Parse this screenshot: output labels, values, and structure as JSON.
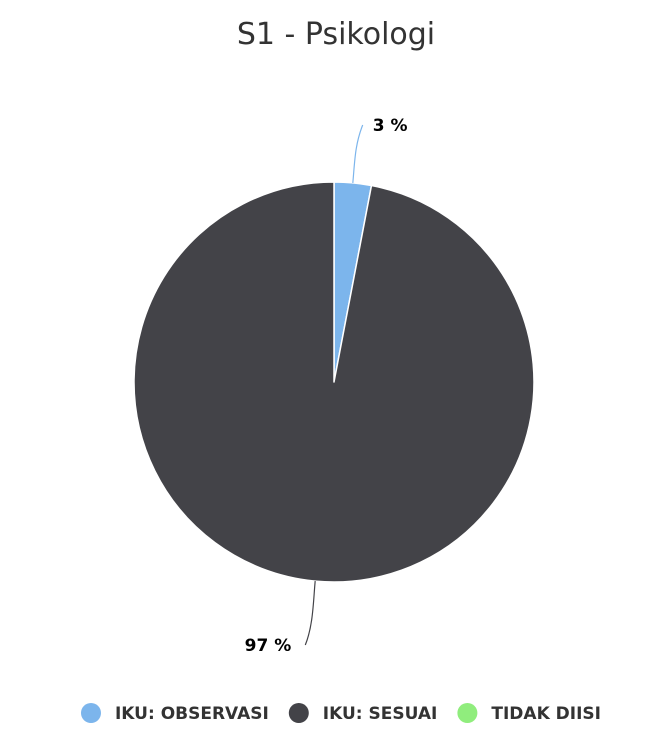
{
  "chart_data": {
    "type": "pie",
    "title": "S1 - Psikologi",
    "slices": [
      {
        "name": "IKU: OBSERVASI",
        "value": 3,
        "label": "3 %",
        "color": "#7cb5ec"
      },
      {
        "name": "IKU: SESUAI",
        "value": 97,
        "label": "97 %",
        "color": "#434348"
      },
      {
        "name": "TIDAK DIISI",
        "value": 0,
        "label": "",
        "color": "#90ed7d"
      }
    ],
    "legend_position": "bottom"
  }
}
